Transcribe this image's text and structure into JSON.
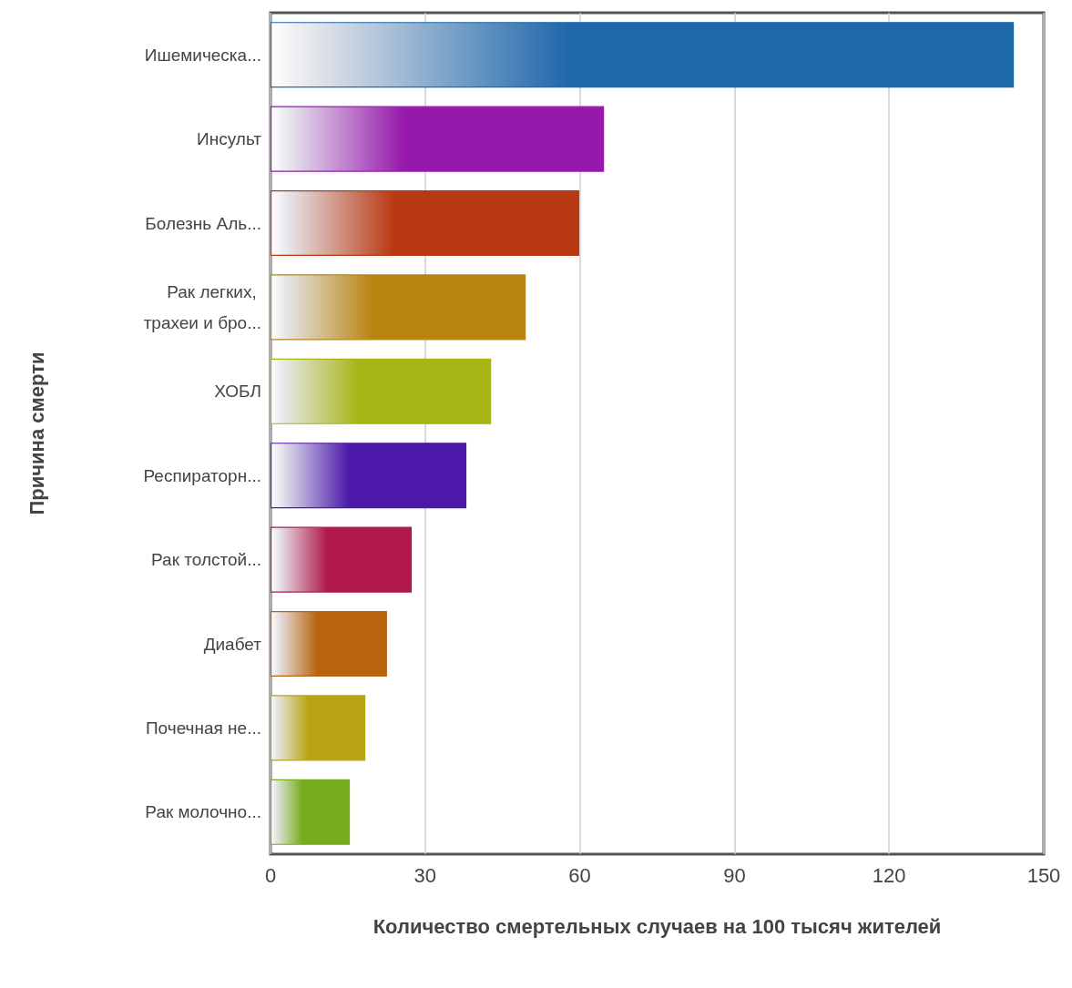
{
  "chart_data": {
    "type": "bar",
    "orientation": "horizontal",
    "xlabel": "Количество смертельных случаев на 100 тысяч жителей",
    "ylabel": "Причина смерти",
    "categories": [
      "Ишемическа...",
      "Инсульт",
      "Болезнь Аль...",
      "Рак легких, трахеи и бро...",
      "ХОБЛ",
      "Респираторн...",
      "Рак толстой...",
      "Диабет",
      "Почечная не...",
      "Рак молочно..."
    ],
    "values": [
      144.2,
      64.7,
      59.9,
      49.5,
      42.8,
      38.0,
      27.4,
      22.6,
      18.4,
      15.4
    ],
    "colors": [
      "#1f68aa",
      "#9619ac",
      "#b83912",
      "#b8840f",
      "#a6b514",
      "#4c19aa",
      "#b0194a",
      "#b8640f",
      "#b8a312",
      "#76ad1f"
    ],
    "xlim": [
      0,
      150
    ],
    "xticks": [
      0,
      30,
      60,
      90,
      120,
      150
    ],
    "grid": "x"
  }
}
